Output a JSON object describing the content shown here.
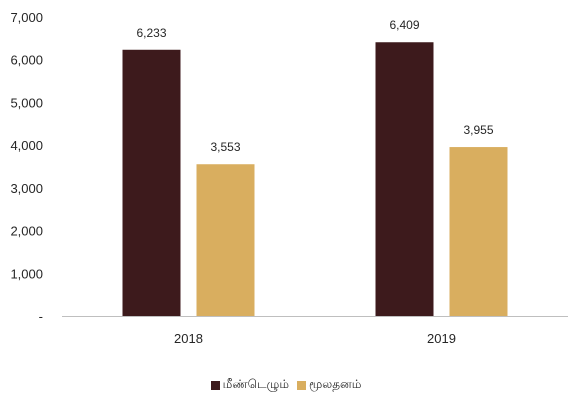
{
  "chart_data": {
    "type": "bar",
    "categories": [
      "2018",
      "2019"
    ],
    "series": [
      {
        "name": "மீண்டெழும்",
        "values": [
          6233,
          6409
        ],
        "labels": [
          "6,233",
          "6,409"
        ],
        "color": "#3d1a1c"
      },
      {
        "name": "மூலதனம்",
        "values": [
          3553,
          3955
        ],
        "labels": [
          "3,553",
          "3,955"
        ],
        "color": "#d9ae5f"
      }
    ],
    "y_ticks": [
      "-",
      "1,000",
      "2,000",
      "3,000",
      "4,000",
      "5,000",
      "6,000",
      "7,000"
    ],
    "ylim": [
      0,
      7000
    ],
    "grid": false,
    "legend_position": "bottom"
  }
}
